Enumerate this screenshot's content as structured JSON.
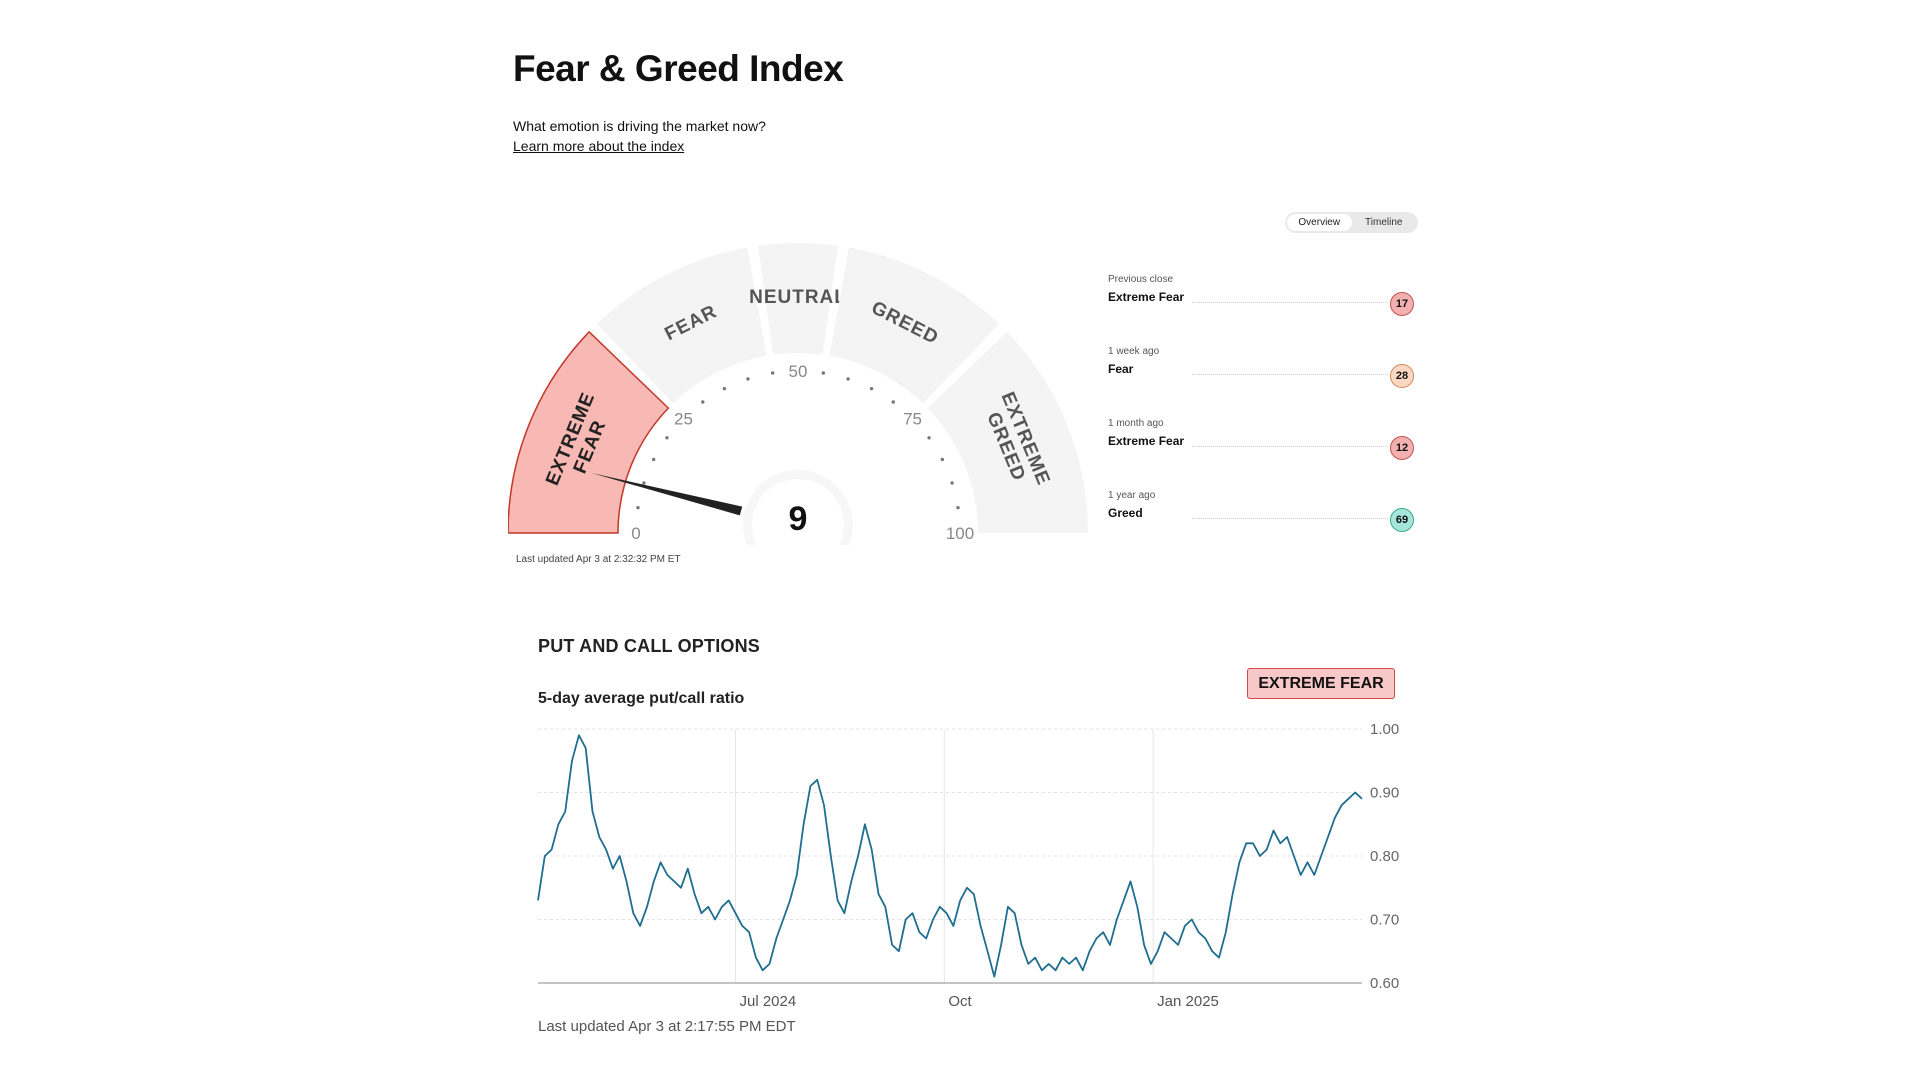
{
  "header": {
    "title": "Fear & Greed Index",
    "subtitle": "What emotion is driving the market now?",
    "learn_link": "Learn more about the index"
  },
  "view_toggle": {
    "options": [
      "Overview",
      "Timeline"
    ],
    "selected": "Overview"
  },
  "gauge": {
    "value": 9,
    "value_text": "9",
    "active_zone": "Extreme Fear",
    "zones": [
      {
        "label": "EXTREME FEAR",
        "lines": [
          "EXTREME",
          "FEAR"
        ],
        "range": [
          0,
          25
        ]
      },
      {
        "label": "FEAR",
        "lines": [
          "FEAR"
        ],
        "range": [
          25,
          45
        ]
      },
      {
        "label": "NEUTRAL",
        "lines": [
          "NEUTRAL"
        ],
        "range": [
          45,
          55
        ]
      },
      {
        "label": "GREED",
        "lines": [
          "GREED"
        ],
        "range": [
          55,
          75
        ]
      },
      {
        "label": "EXTREME GREED",
        "lines": [
          "EXTREME",
          "GREED"
        ],
        "range": [
          75,
          100
        ]
      }
    ],
    "ticks": [
      {
        "value": 0,
        "text": "0"
      },
      {
        "value": 25,
        "text": "25"
      },
      {
        "value": 50,
        "text": "50"
      },
      {
        "value": 75,
        "text": "75"
      },
      {
        "value": 100,
        "text": "100"
      }
    ],
    "last_updated": "Last updated Apr 3 at 2:32:32 PM ET",
    "colors": {
      "active_fill": "#f8b8b4",
      "active_stroke": "#c0392b",
      "zone_fill": "#f4f4f4",
      "needle": "#222222"
    }
  },
  "history": [
    {
      "label": "Previous close",
      "rating": "Extreme Fear",
      "value": "17",
      "color": "#f3b0b0",
      "border": "#c45050"
    },
    {
      "label": "1 week ago",
      "rating": "Fear",
      "value": "28",
      "color": "#fad8c2",
      "border": "#d28a5c"
    },
    {
      "label": "1 month ago",
      "rating": "Extreme Fear",
      "value": "12",
      "color": "#f3b0b0",
      "border": "#c45050"
    },
    {
      "label": "1 year ago",
      "rating": "Greed",
      "value": "69",
      "color": "#a6e6da",
      "border": "#3aa88f"
    }
  ],
  "put_call": {
    "title": "PUT AND CALL OPTIONS",
    "subtitle": "5-day average put/call ratio",
    "rating": "EXTREME FEAR",
    "last_updated": "Last updated Apr 3 at 2:17:55 PM EDT"
  },
  "chart_data": {
    "type": "line",
    "title": "5-day average put/call ratio",
    "xlabel": "",
    "ylabel": "",
    "ylim": [
      0.6,
      1.0
    ],
    "yticks": [
      {
        "value": 1.0,
        "label": "1.00"
      },
      {
        "value": 0.9,
        "label": "0.90"
      },
      {
        "value": 0.8,
        "label": "0.80"
      },
      {
        "value": 0.7,
        "label": "0.70"
      },
      {
        "value": 0.6,
        "label": "0.60"
      }
    ],
    "xlim": [
      "2024-04-05",
      "2025-04-03"
    ],
    "xticks": [
      {
        "date": "2024-07-01",
        "label": "Jul 2024"
      },
      {
        "date": "2024-10-01",
        "label": "Oct"
      },
      {
        "date": "2025-01-01",
        "label": "Jan 2025"
      }
    ],
    "grid": true,
    "color": "#1f6e8f",
    "series": [
      {
        "x": [
          "2024-04-05",
          "2024-04-08",
          "2024-04-11",
          "2024-04-14",
          "2024-04-17",
          "2024-04-20",
          "2024-04-23",
          "2024-04-26",
          "2024-04-29",
          "2024-05-02",
          "2024-05-05",
          "2024-05-08",
          "2024-05-11",
          "2024-05-14",
          "2024-05-17",
          "2024-05-20",
          "2024-05-23",
          "2024-05-26",
          "2024-05-29",
          "2024-06-01",
          "2024-06-04",
          "2024-06-07",
          "2024-06-10",
          "2024-06-13",
          "2024-06-16",
          "2024-06-19",
          "2024-06-22",
          "2024-06-25",
          "2024-06-28",
          "2024-07-01",
          "2024-07-04",
          "2024-07-07",
          "2024-07-10",
          "2024-07-13",
          "2024-07-16",
          "2024-07-19",
          "2024-07-22",
          "2024-07-25",
          "2024-07-28",
          "2024-07-31",
          "2024-08-03",
          "2024-08-06",
          "2024-08-09",
          "2024-08-12",
          "2024-08-15",
          "2024-08-18",
          "2024-08-21",
          "2024-08-24",
          "2024-08-27",
          "2024-08-30",
          "2024-09-02",
          "2024-09-05",
          "2024-09-08",
          "2024-09-11",
          "2024-09-14",
          "2024-09-17",
          "2024-09-20",
          "2024-09-23",
          "2024-09-26",
          "2024-09-29",
          "2024-10-02",
          "2024-10-05",
          "2024-10-08",
          "2024-10-11",
          "2024-10-14",
          "2024-10-17",
          "2024-10-20",
          "2024-10-23",
          "2024-10-26",
          "2024-10-29",
          "2024-11-01",
          "2024-11-04",
          "2024-11-07",
          "2024-11-10",
          "2024-11-13",
          "2024-11-16",
          "2024-11-19",
          "2024-11-22",
          "2024-11-25",
          "2024-11-28",
          "2024-12-01",
          "2024-12-04",
          "2024-12-07",
          "2024-12-10",
          "2024-12-13",
          "2024-12-16",
          "2024-12-19",
          "2024-12-22",
          "2024-12-25",
          "2024-12-28",
          "2024-12-31",
          "2025-01-03",
          "2025-01-06",
          "2025-01-09",
          "2025-01-12",
          "2025-01-15",
          "2025-01-18",
          "2025-01-21",
          "2025-01-24",
          "2025-01-27",
          "2025-01-30",
          "2025-02-02",
          "2025-02-05",
          "2025-02-08",
          "2025-02-11",
          "2025-02-14",
          "2025-02-17",
          "2025-02-20",
          "2025-02-23",
          "2025-02-26",
          "2025-03-01",
          "2025-03-04",
          "2025-03-07",
          "2025-03-10",
          "2025-03-13",
          "2025-03-16",
          "2025-03-19",
          "2025-03-22",
          "2025-03-25",
          "2025-03-28",
          "2025-03-31",
          "2025-04-03"
        ],
        "y": [
          0.73,
          0.8,
          0.81,
          0.85,
          0.87,
          0.95,
          0.99,
          0.97,
          0.87,
          0.83,
          0.81,
          0.78,
          0.8,
          0.76,
          0.71,
          0.69,
          0.72,
          0.76,
          0.79,
          0.77,
          0.76,
          0.75,
          0.78,
          0.74,
          0.71,
          0.72,
          0.7,
          0.72,
          0.73,
          0.71,
          0.69,
          0.68,
          0.64,
          0.62,
          0.63,
          0.67,
          0.7,
          0.73,
          0.77,
          0.85,
          0.91,
          0.92,
          0.88,
          0.8,
          0.73,
          0.71,
          0.76,
          0.8,
          0.85,
          0.81,
          0.74,
          0.72,
          0.66,
          0.65,
          0.7,
          0.71,
          0.68,
          0.67,
          0.7,
          0.72,
          0.71,
          0.69,
          0.73,
          0.75,
          0.74,
          0.69,
          0.65,
          0.61,
          0.66,
          0.72,
          0.71,
          0.66,
          0.63,
          0.64,
          0.62,
          0.63,
          0.62,
          0.64,
          0.63,
          0.64,
          0.62,
          0.65,
          0.67,
          0.68,
          0.66,
          0.7,
          0.73,
          0.76,
          0.72,
          0.66,
          0.63,
          0.65,
          0.68,
          0.67,
          0.66,
          0.69,
          0.7,
          0.68,
          0.67,
          0.65,
          0.64,
          0.68,
          0.74,
          0.79,
          0.82,
          0.82,
          0.8,
          0.81,
          0.84,
          0.82,
          0.83,
          0.8,
          0.77,
          0.79,
          0.77,
          0.8,
          0.83,
          0.86,
          0.88,
          0.89,
          0.9,
          0.89
        ]
      }
    ]
  }
}
